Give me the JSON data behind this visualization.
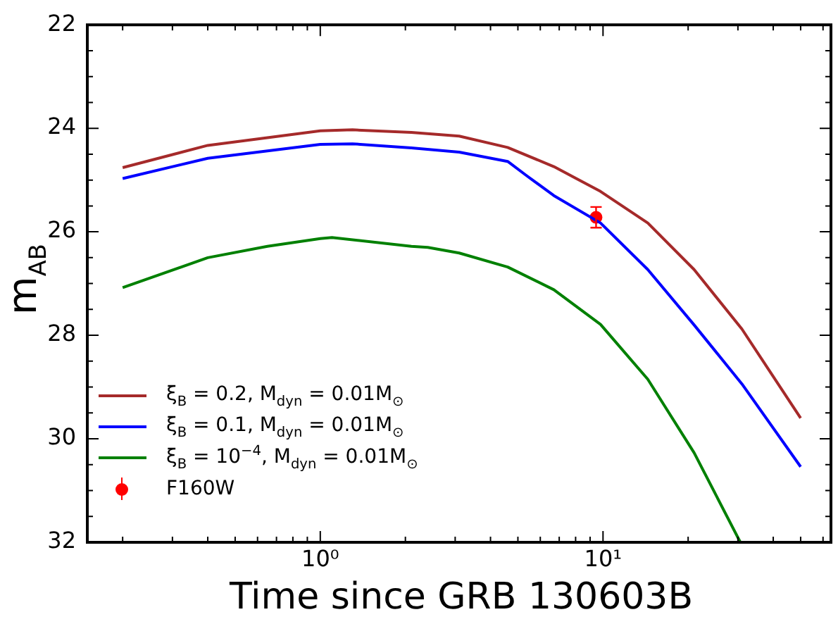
{
  "chart_data": {
    "type": "line",
    "xlabel": "Time since GRB 130603B",
    "ylabel": "m$_{AB}$",
    "log": "x",
    "legend": "bottom left",
    "line_style": "solid",
    "marker": "none",
    "xlim": [
      0.15,
      64
    ],
    "ylim": [
      32,
      22
    ],
    "xticks": [
      {
        "value": 0.2,
        "label": null
      },
      {
        "value": 0.3,
        "label": null
      },
      {
        "value": 0.4,
        "label": null
      },
      {
        "value": 0.5,
        "label": null
      },
      {
        "value": 0.6,
        "label": null
      },
      {
        "value": 0.7,
        "label": null
      },
      {
        "value": 0.8,
        "label": null
      },
      {
        "value": 0.9,
        "label": null
      },
      {
        "value": 1,
        "label": "10⁰"
      },
      {
        "value": 2,
        "label": null
      },
      {
        "value": 3,
        "label": null
      },
      {
        "value": 4,
        "label": null
      },
      {
        "value": 5,
        "label": null
      },
      {
        "value": 6,
        "label": null
      },
      {
        "value": 7,
        "label": null
      },
      {
        "value": 8,
        "label": null
      },
      {
        "value": 9,
        "label": null
      },
      {
        "value": 10,
        "label": "10¹"
      },
      {
        "value": 20,
        "label": null
      },
      {
        "value": 30,
        "label": null
      },
      {
        "value": 40,
        "label": null
      },
      {
        "value": 50,
        "label": null
      },
      {
        "value": 60,
        "label": null
      }
    ],
    "yticks": [
      22,
      {
        "value": 22.5,
        "label": null
      },
      {
        "value": 23,
        "label": null
      },
      {
        "value": 23.5,
        "label": null
      },
      24,
      {
        "value": 24.5,
        "label": null
      },
      {
        "value": 25,
        "label": null
      },
      {
        "value": 25.5,
        "label": null
      },
      26,
      {
        "value": 26.5,
        "label": null
      },
      {
        "value": 27,
        "label": null
      },
      {
        "value": 27.5,
        "label": null
      },
      28,
      {
        "value": 28.5,
        "label": null
      },
      {
        "value": 29,
        "label": null
      },
      {
        "value": 29.5,
        "label": null
      },
      30,
      {
        "value": 30.5,
        "label": null
      },
      {
        "value": 31,
        "label": null
      },
      {
        "value": 31.5,
        "label": null
      },
      32
    ],
    "series": [
      {
        "name": "ξ$_{B}$ = 0.2, M$_{dyn}$ = 0.01M$_{⊙}$",
        "color": "#a52a2a",
        "x": [
          0.2,
          0.4,
          1,
          1.3,
          2.1,
          3.1,
          4.6,
          6.7,
          9.8,
          14.4,
          21,
          31,
          50
        ],
        "values": [
          24.76,
          24.33,
          24.05,
          24.03,
          24.08,
          24.15,
          24.37,
          24.74,
          25.22,
          25.83,
          26.73,
          27.88,
          29.6
        ]
      },
      {
        "name": "ξ$_{B}$ = 0.1, M$_{dyn}$ = 0.01M$_{⊙}$",
        "color": "#0000ff",
        "x": [
          0.2,
          0.4,
          1,
          1.3,
          2.1,
          3.1,
          4.6,
          5.35,
          6.7,
          9.8,
          14.4,
          21,
          31,
          50
        ],
        "values": [
          24.97,
          24.58,
          24.31,
          24.3,
          24.38,
          24.46,
          24.64,
          24.91,
          25.3,
          25.83,
          26.73,
          27.8,
          28.94,
          30.54
        ]
      },
      {
        "name": "ξ$_{B}$ = 10$^{−4}$, M$_{dyn}$ = 0.01M$_{⊙}$",
        "color": "#008000",
        "x": [
          0.2,
          0.4,
          0.65,
          1,
          1.1,
          2.1,
          2.4,
          3.1,
          4.6,
          6.7,
          9.8,
          14.4,
          21,
          30.6
        ],
        "values": [
          27.08,
          26.5,
          26.28,
          26.13,
          26.11,
          26.28,
          26.3,
          26.41,
          26.68,
          27.12,
          27.79,
          28.85,
          30.27,
          32
        ]
      },
      {
        "name": "F160W",
        "type": "scatter",
        "marker": "circle",
        "color": "#ff0000",
        "x": [
          9.45
        ],
        "values": [
          25.72
        ],
        "errors": [
          0.2
        ]
      }
    ]
  }
}
